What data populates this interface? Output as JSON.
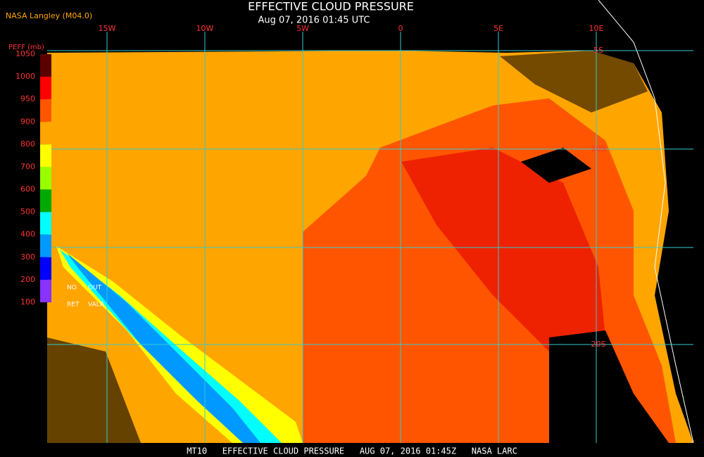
{
  "title": "EFFECTIVE CLOUD PRESSURE",
  "subtitle": "Aug 07, 2016 01:45 UTC",
  "source": "NASA Langley (M04.0)",
  "legend": {
    "title": "PEFF (mb)",
    "ticks": [
      "1050",
      "1000",
      "950",
      "900",
      "800",
      "700",
      "600",
      "500",
      "400",
      "300",
      "200",
      "100"
    ],
    "colors": [
      "#5a0000",
      "#ff0000",
      "#ff5500",
      "#ffa500",
      "#ffff00",
      "#99ff00",
      "#00aa00",
      "#00ffff",
      "#0099ff",
      "#0000ff",
      "#8833ff"
    ],
    "notes": [
      "NO",
      "OUT",
      "RET",
      "VALR"
    ]
  },
  "grid": {
    "longitudes": [
      "15W",
      "10W",
      "5W",
      "0",
      "5E",
      "10E"
    ],
    "latitudes": [
      "5S",
      "10S",
      "20S"
    ]
  },
  "footer": "MT10   EFFECTIVE CLOUD PRESSURE   AUG 07, 2016 01:45Z   NASA LARC"
}
